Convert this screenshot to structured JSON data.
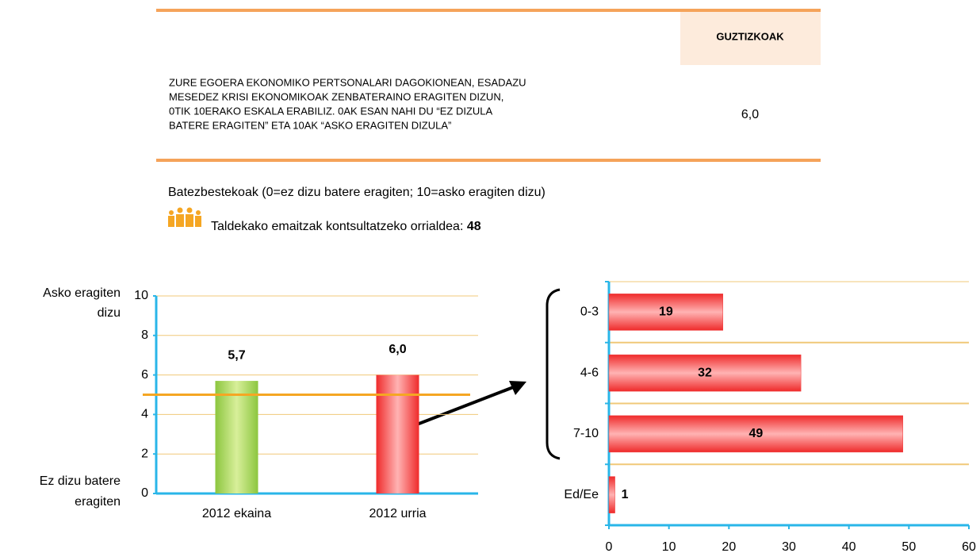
{
  "table": {
    "header": "GUZTIZKOAK",
    "row": {
      "question": [
        "ZURE EGOERA EKONOMIKO PERTSONALARI DAGOKIONEAN, ESADAZU",
        "MESEDEZ KRISI EKONOMIKOAK ZENBATERAINO ERAGITEN DIZUN,",
        "0TIK 10ERAKO ESKALA ERABILIZ. 0AK ESAN NAHI DU “EZ DIZULA",
        "BATERE ERAGITEN” ETA 10AK “ASKO ERAGITEN DIZULA”"
      ],
      "value": "6,0"
    }
  },
  "notes": {
    "average": "Batezbestekoak (0=ez dizu batere eragiten; 10=asko eragiten dizu)",
    "groups": "Taldekako emaitzak kontsultatzeko orrialdea: ",
    "page": "48"
  },
  "chart_data": [
    {
      "type": "bar",
      "categories": [
        "2012 ekaina",
        "2012 urria"
      ],
      "values": [
        5.7,
        6.0
      ],
      "value_labels": [
        "5,7",
        "6,0"
      ],
      "colors": [
        "#9acd32",
        "#f03a3a"
      ],
      "ylim": [
        0,
        10
      ],
      "yticks": [
        0,
        2,
        4,
        6,
        8,
        10
      ],
      "grid": true,
      "reference_line": 5.0,
      "reference_color": "#f5a623",
      "annotations": {
        "top": [
          "Asko eragiten",
          "dizu"
        ],
        "bottom": [
          "Ez dizu batere",
          "eragiten"
        ]
      }
    },
    {
      "type": "hbar",
      "categories": [
        "0-3",
        "4-6",
        "7-10",
        "Ed/Ee"
      ],
      "values": [
        19,
        32,
        49,
        1
      ],
      "color": "#f03a3a",
      "xlim": [
        0,
        60
      ],
      "xticks": [
        0,
        10,
        20,
        30,
        40,
        50,
        60
      ]
    }
  ]
}
